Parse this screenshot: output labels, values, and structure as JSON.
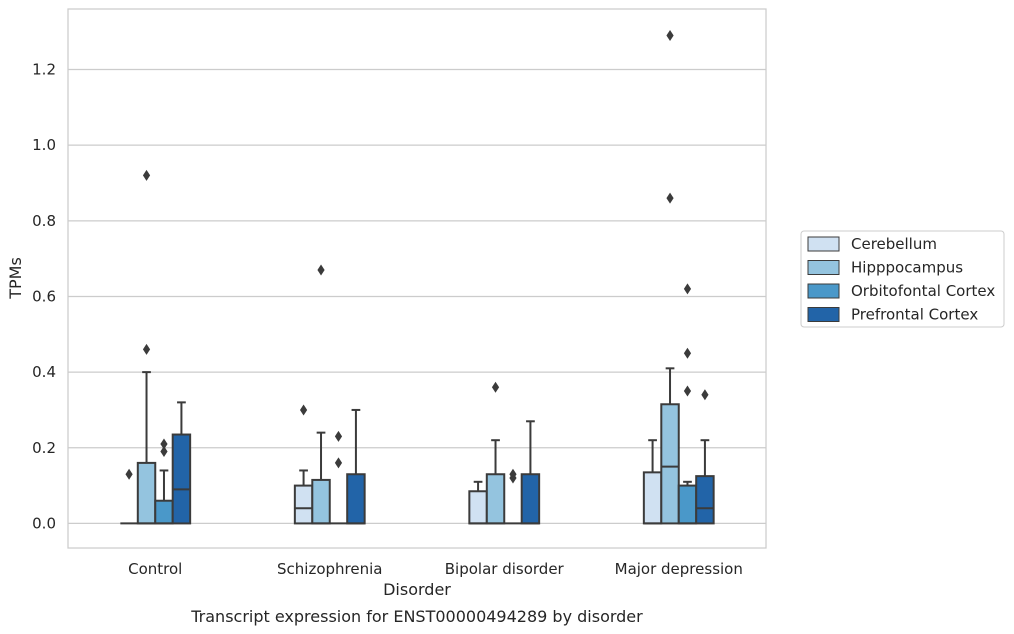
{
  "caption": "Transcript expression for ENST00000494289 by disorder",
  "chart_data": {
    "type": "box",
    "xlabel": "Disorder",
    "ylabel": "TPMs",
    "ylim": [
      -0.065,
      1.36
    ],
    "yticks": [
      0.0,
      0.2,
      0.4,
      0.6,
      0.8,
      1.0,
      1.2
    ],
    "ytick_labels": [
      "0.0",
      "0.2",
      "0.4",
      "0.6",
      "0.8",
      "1.0",
      "1.2"
    ],
    "grid": "horizontal",
    "legend_position": "right",
    "categories": [
      "Control",
      "Schizophrenia",
      "Bipolar disorder",
      "Major depression"
    ],
    "series": [
      {
        "name": "Cerebellum",
        "color": "#d0e1f2",
        "boxes": [
          {
            "q1": 0.0,
            "median": 0.0,
            "q3": 0.0,
            "whisker_low": 0.0,
            "whisker_high": 0.0,
            "outliers": [
              0.13
            ]
          },
          {
            "q1": 0.0,
            "median": 0.04,
            "q3": 0.1,
            "whisker_low": 0.0,
            "whisker_high": 0.14,
            "outliers": [
              0.3
            ]
          },
          {
            "q1": 0.0,
            "median": 0.0,
            "q3": 0.085,
            "whisker_low": 0.0,
            "whisker_high": 0.11,
            "outliers": []
          },
          {
            "q1": 0.0,
            "median": 0.0,
            "q3": 0.135,
            "whisker_low": 0.0,
            "whisker_high": 0.22,
            "outliers": []
          }
        ]
      },
      {
        "name": "Hipppocampus",
        "color": "#94c4df",
        "boxes": [
          {
            "q1": 0.0,
            "median": 0.0,
            "q3": 0.16,
            "whisker_low": 0.0,
            "whisker_high": 0.4,
            "outliers": [
              0.46,
              0.92
            ]
          },
          {
            "q1": 0.0,
            "median": 0.0,
            "q3": 0.115,
            "whisker_low": 0.0,
            "whisker_high": 0.24,
            "outliers": [
              0.67
            ]
          },
          {
            "q1": 0.0,
            "median": 0.0,
            "q3": 0.13,
            "whisker_low": 0.0,
            "whisker_high": 0.22,
            "outliers": [
              0.36
            ]
          },
          {
            "q1": 0.0,
            "median": 0.15,
            "q3": 0.315,
            "whisker_low": 0.0,
            "whisker_high": 0.41,
            "outliers": [
              0.86,
              1.29
            ]
          }
        ]
      },
      {
        "name": "Orbitofontal Cortex",
        "color": "#4a98c9",
        "boxes": [
          {
            "q1": 0.0,
            "median": 0.0,
            "q3": 0.06,
            "whisker_low": 0.0,
            "whisker_high": 0.14,
            "outliers": [
              0.19,
              0.21
            ]
          },
          {
            "q1": 0.0,
            "median": 0.0,
            "q3": 0.0,
            "whisker_low": 0.0,
            "whisker_high": 0.0,
            "outliers": [
              0.16,
              0.23
            ]
          },
          {
            "q1": 0.0,
            "median": 0.0,
            "q3": 0.0,
            "whisker_low": 0.0,
            "whisker_high": 0.0,
            "outliers": [
              0.12,
              0.13
            ]
          },
          {
            "q1": 0.0,
            "median": 0.0,
            "q3": 0.1,
            "whisker_low": 0.0,
            "whisker_high": 0.11,
            "outliers": [
              0.35,
              0.45,
              0.62
            ]
          }
        ]
      },
      {
        "name": "Prefrontal Cortex",
        "color": "#2264a8",
        "boxes": [
          {
            "q1": 0.0,
            "median": 0.09,
            "q3": 0.235,
            "whisker_low": 0.0,
            "whisker_high": 0.32,
            "outliers": []
          },
          {
            "q1": 0.0,
            "median": 0.0,
            "q3": 0.13,
            "whisker_low": 0.0,
            "whisker_high": 0.3,
            "outliers": []
          },
          {
            "q1": 0.0,
            "median": 0.0,
            "q3": 0.13,
            "whisker_low": 0.0,
            "whisker_high": 0.27,
            "outliers": []
          },
          {
            "q1": 0.0,
            "median": 0.04,
            "q3": 0.125,
            "whisker_low": 0.0,
            "whisker_high": 0.22,
            "outliers": [
              0.34
            ]
          }
        ]
      }
    ]
  }
}
